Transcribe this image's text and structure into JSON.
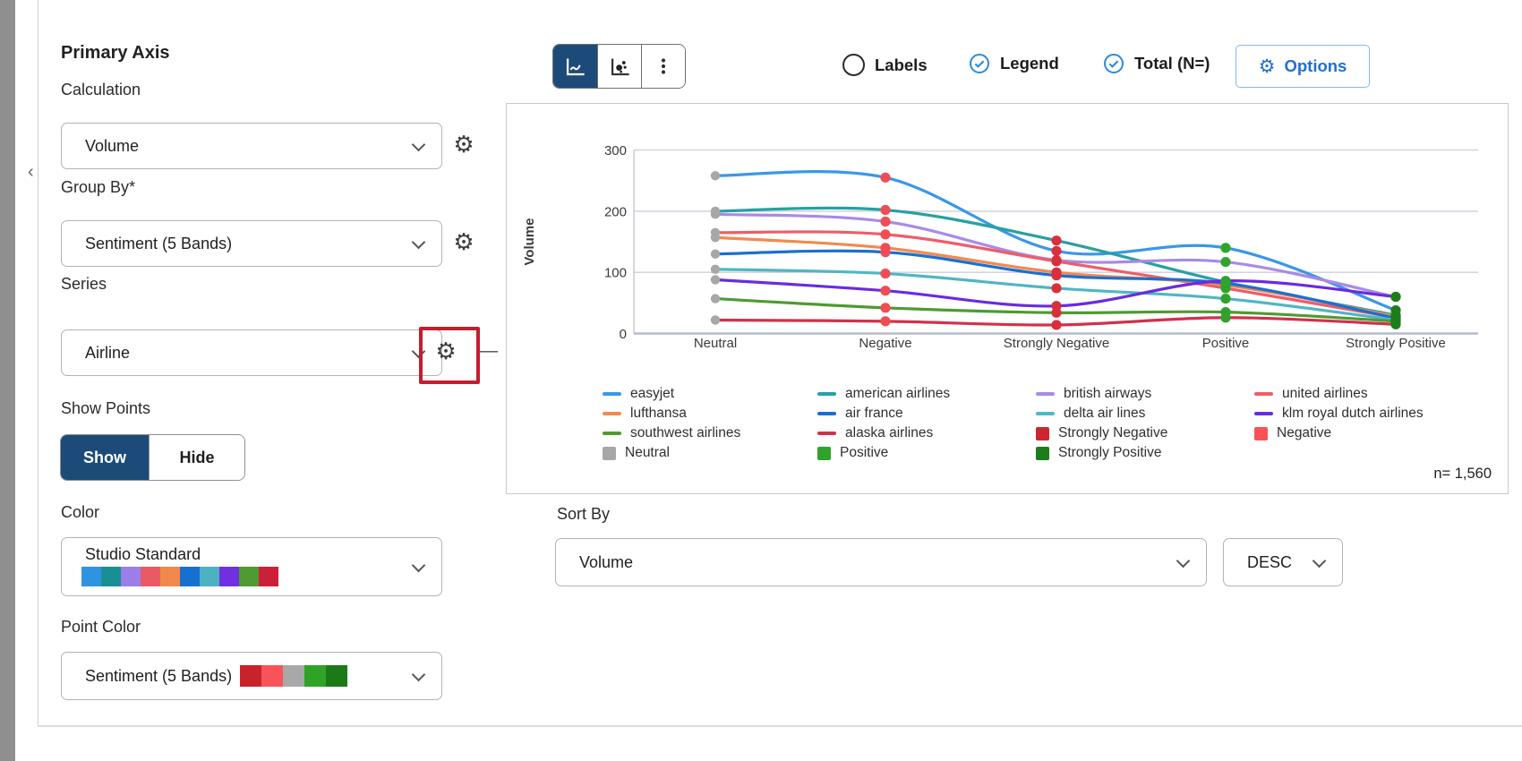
{
  "panel": {
    "title": "Primary Axis",
    "calculation": {
      "label": "Calculation",
      "value": "Volume"
    },
    "group_by": {
      "label": "Group By*",
      "value": "Sentiment (5 Bands)"
    },
    "series": {
      "label": "Series",
      "value": "Airline"
    },
    "show_points": {
      "label": "Show Points",
      "show": "Show",
      "hide": "Hide",
      "selected": "Show"
    },
    "color": {
      "label": "Color",
      "value": "Studio Standard",
      "palette": [
        "#2f93e0",
        "#188f93",
        "#9b7ee8",
        "#ea5a64",
        "#f2884b",
        "#1670d2",
        "#4cb2c2",
        "#7030e0",
        "#4f9a31",
        "#cc2038"
      ]
    },
    "point_color": {
      "label": "Point Color",
      "value": "Sentiment (5 Bands)",
      "palette": [
        "#c8232b",
        "#f9535a",
        "#a8a8a8",
        "#2fa325",
        "#1b7a17"
      ]
    }
  },
  "toolbar": {
    "chart_type_icons": [
      "line-chart",
      "scatter-chart",
      "more-options"
    ],
    "active": "line-chart",
    "labels_toggle": "Labels",
    "labels_checked": false,
    "legend_toggle": "Legend",
    "legend_checked": true,
    "total_toggle": "Total (N=)",
    "total_checked": true,
    "options_button": "Options"
  },
  "chart_data": {
    "type": "line",
    "title": "",
    "xlabel": "",
    "ylabel": "Volume",
    "ylim": [
      0,
      300
    ],
    "yticks": [
      0,
      100,
      200,
      300
    ],
    "grid": true,
    "legend_position": "bottom",
    "categories": [
      "Neutral",
      "Negative",
      "Strongly Negative",
      "Positive",
      "Strongly Positive"
    ],
    "series": [
      {
        "name": "easyjet",
        "color": "#3b97e8",
        "values": [
          258,
          255,
          135,
          140,
          38
        ]
      },
      {
        "name": "american airlines",
        "color": "#27a0a2",
        "values": [
          200,
          202,
          152,
          84,
          30
        ]
      },
      {
        "name": "british airways",
        "color": "#a98ae8",
        "values": [
          195,
          183,
          120,
          117,
          60
        ]
      },
      {
        "name": "united airlines",
        "color": "#ee5d67",
        "values": [
          165,
          162,
          118,
          74,
          26
        ]
      },
      {
        "name": "lufthansa",
        "color": "#f28a4d",
        "values": [
          157,
          140,
          100,
          79,
          28
        ]
      },
      {
        "name": "air france",
        "color": "#1a6fd4",
        "values": [
          130,
          133,
          95,
          82,
          25
        ]
      },
      {
        "name": "delta air lines",
        "color": "#4fb6c4",
        "values": [
          105,
          98,
          74,
          57,
          22
        ]
      },
      {
        "name": "klm royal dutch airlines",
        "color": "#6a2be0",
        "values": [
          88,
          70,
          45,
          86,
          60
        ]
      },
      {
        "name": "southwest airlines",
        "color": "#4f9a31",
        "values": [
          57,
          42,
          34,
          35,
          20
        ]
      },
      {
        "name": "alaska airlines",
        "color": "#d2304c",
        "values": [
          22,
          20,
          14,
          26,
          15
        ]
      }
    ],
    "point_colors_by_category": [
      "#a7a7a7",
      "#ef4d55",
      "#d92f3c",
      "#2fa32b",
      "#1e7d1b"
    ],
    "total_label": "n= 1,560"
  },
  "legend": {
    "columns": [
      [
        {
          "label": "easyjet",
          "swatch": "line",
          "color": "#3b97e8"
        },
        {
          "label": "lufthansa",
          "swatch": "line",
          "color": "#f28a4d"
        },
        {
          "label": "southwest airlines",
          "swatch": "line",
          "color": "#4f9a31"
        },
        {
          "label": "Neutral",
          "swatch": "square",
          "color": "#a7a7a7"
        }
      ],
      [
        {
          "label": "american airlines",
          "swatch": "line",
          "color": "#27a0a2"
        },
        {
          "label": "air france",
          "swatch": "line",
          "color": "#1a6fd4"
        },
        {
          "label": "alaska airlines",
          "swatch": "line",
          "color": "#d2304c"
        },
        {
          "label": "Positive",
          "swatch": "square",
          "color": "#2fa32b"
        }
      ],
      [
        {
          "label": "british airways",
          "swatch": "line",
          "color": "#a98ae8"
        },
        {
          "label": "delta air lines",
          "swatch": "line",
          "color": "#4fb6c4"
        },
        {
          "label": "Strongly Negative",
          "swatch": "square",
          "color": "#cc2731"
        },
        {
          "label": "Strongly Positive",
          "swatch": "square",
          "color": "#1e7d1b"
        }
      ],
      [
        {
          "label": "united airlines",
          "swatch": "line",
          "color": "#ee5d67"
        },
        {
          "label": "klm royal dutch airlines",
          "swatch": "line",
          "color": "#6a2be0"
        },
        {
          "label": "Negative",
          "swatch": "square",
          "color": "#fa5157"
        }
      ]
    ]
  },
  "sort": {
    "label": "Sort By",
    "value": "Volume",
    "direction": "DESC"
  },
  "colors": {
    "accent_navy": "#1d4b79",
    "accent_blue": "#1f6fd4",
    "check_blue": "#2e8ad6",
    "annotation_red": "#c01f2f",
    "grid_line": "#d5d5e0",
    "axis_line": "#b5bace"
  }
}
